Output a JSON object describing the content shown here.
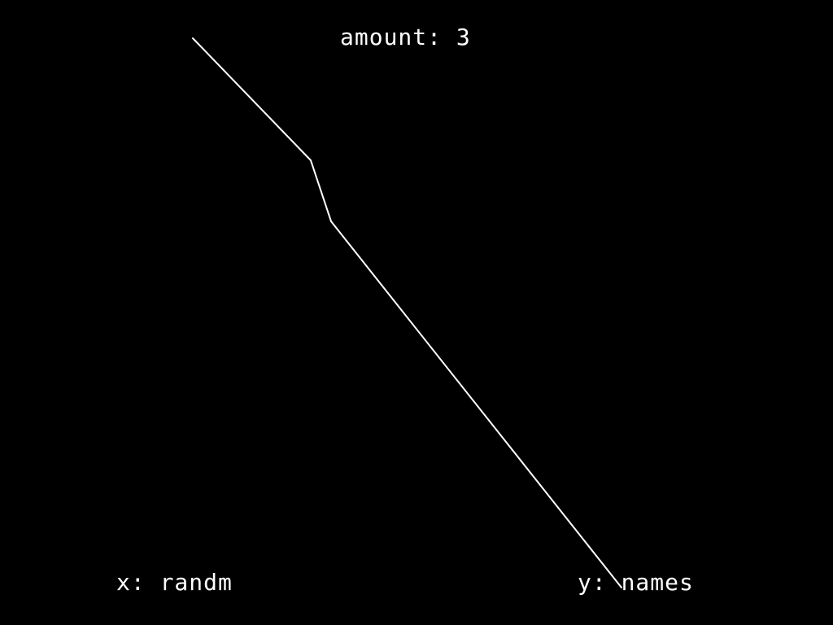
{
  "colors": {
    "background": "#000000",
    "foreground": "#ffffff"
  },
  "chart_data": {
    "type": "line",
    "title": "amount: 3",
    "xlabel": "x: randm",
    "ylabel": "y: names",
    "grid": false,
    "series": [
      {
        "points": [
          {
            "x": 0,
            "y": 0
          },
          {
            "x": 145,
            "y": 150
          },
          {
            "x": 170,
            "y": 225
          },
          {
            "x": 527,
            "y": 675
          }
        ]
      }
    ]
  }
}
